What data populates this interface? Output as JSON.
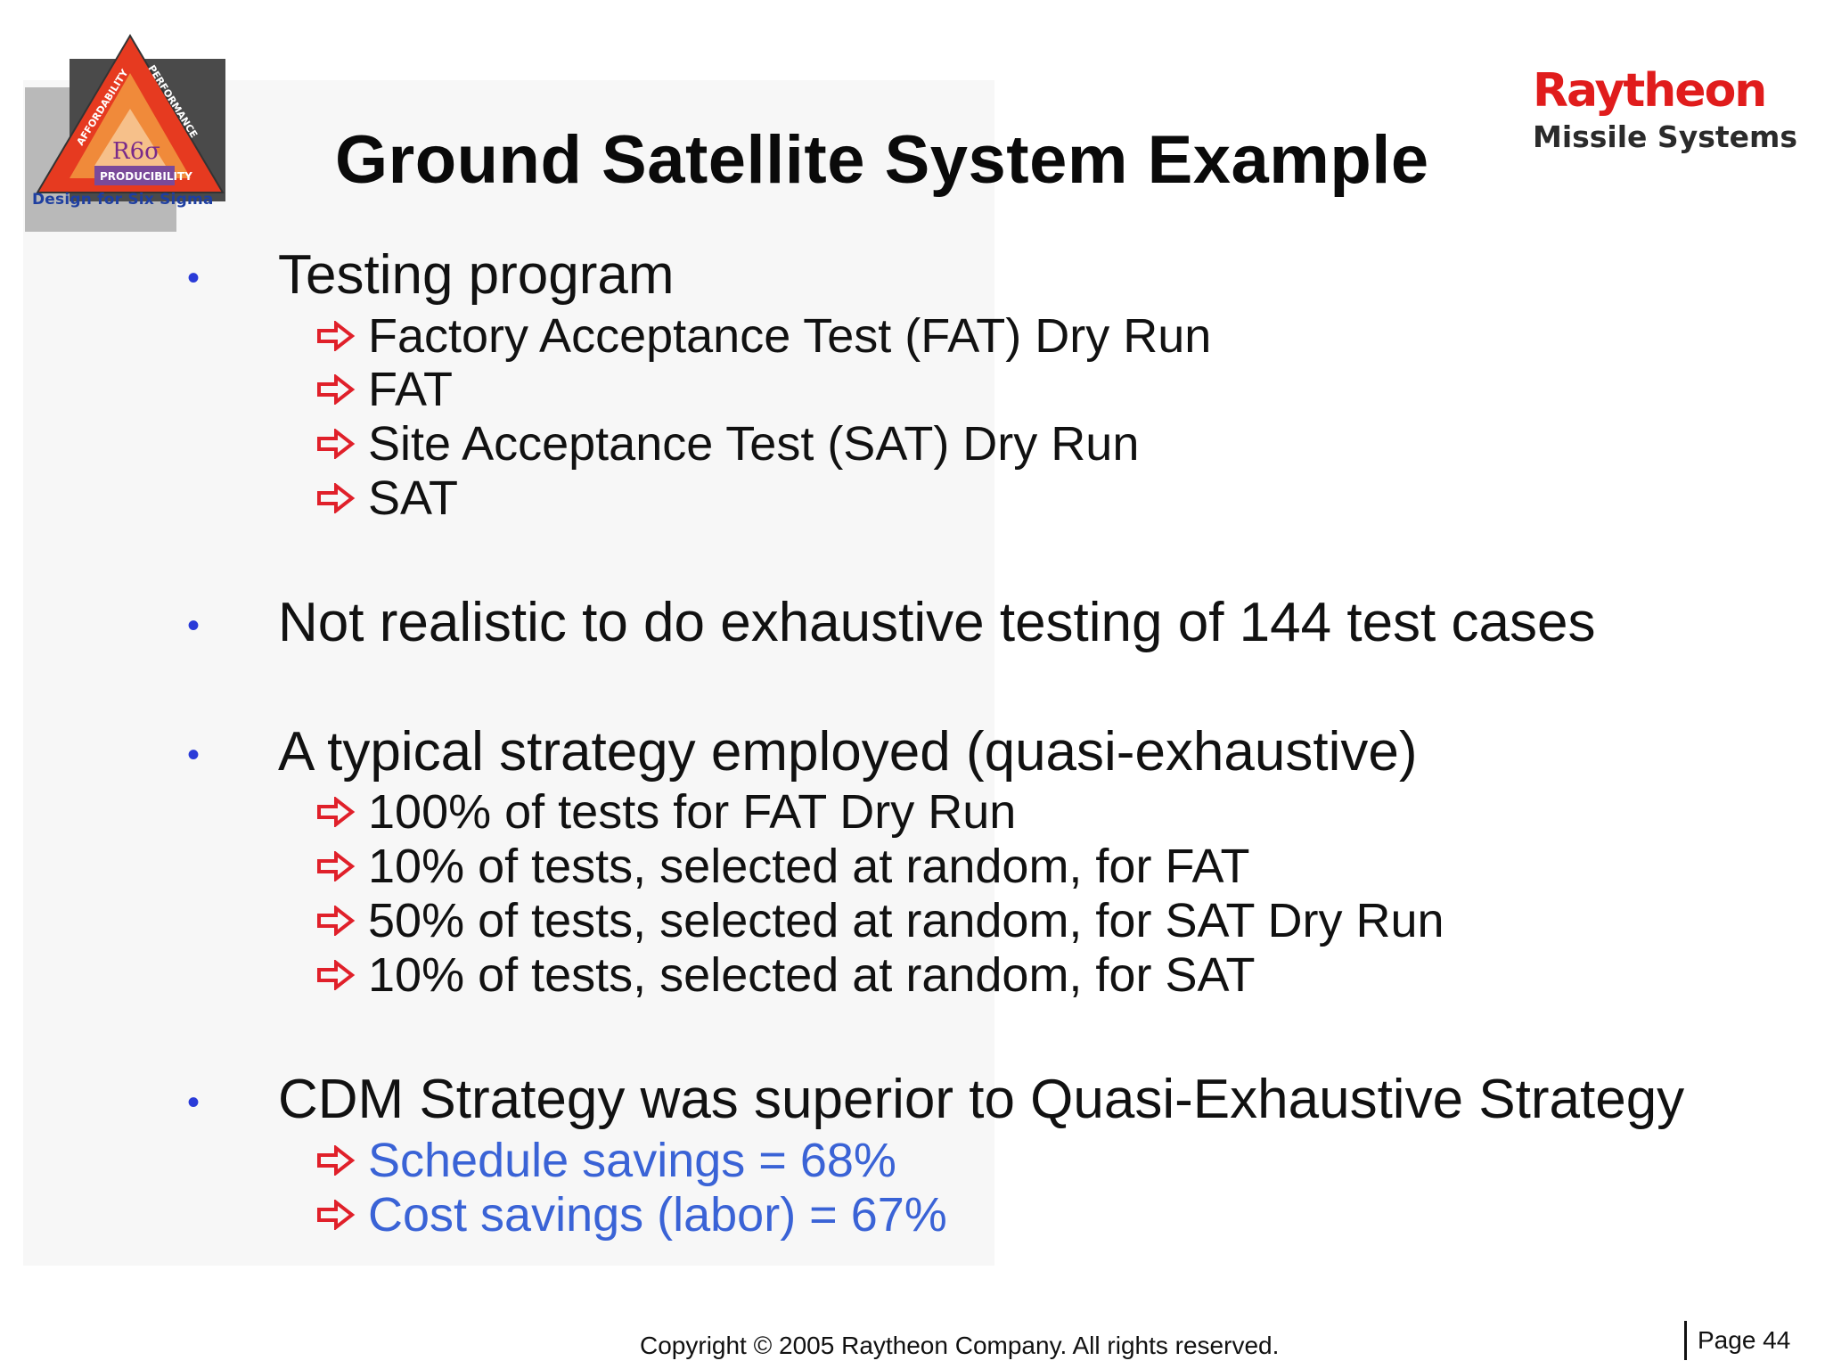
{
  "logo": {
    "tri_left": "AFFORDABILITY",
    "tri_right": "PERFORMANCE",
    "tri_bottom": "PRODUCIBILITY",
    "center": "R6σ",
    "caption": "Design for Six Sigma"
  },
  "title": "Ground Satellite System Example",
  "brand": {
    "name": "Raytheon",
    "sub": "Missile Systems"
  },
  "colors": {
    "bullet": "#2a3bd8",
    "arrow": "#e0202a",
    "highlight": "#3a63d6",
    "brand": "#e01c1c"
  },
  "bullets": [
    {
      "text": "Testing program",
      "subs": [
        "Factory Acceptance Test (FAT) Dry Run",
        "FAT",
        "Site Acceptance Test (SAT) Dry Run",
        "SAT"
      ]
    },
    {
      "text": "Not realistic to do exhaustive testing of 144 test cases",
      "subs": []
    },
    {
      "text": "A typical strategy employed (quasi-exhaustive)",
      "subs": [
        "100% of tests for FAT Dry Run",
        "10% of tests, selected at random, for FAT",
        "50% of tests, selected at random, for SAT Dry Run",
        "10% of tests, selected at random, for SAT"
      ]
    },
    {
      "text": "CDM Strategy was superior to Quasi-Exhaustive Strategy",
      "subs": [
        "Schedule savings = 68%",
        "Cost savings (labor) = 67%"
      ]
    }
  ],
  "bullet_glyph": "•",
  "footer": {
    "copyright": "Copyright © 2005 Raytheon Company. All rights reserved.",
    "page": "Page 44"
  }
}
